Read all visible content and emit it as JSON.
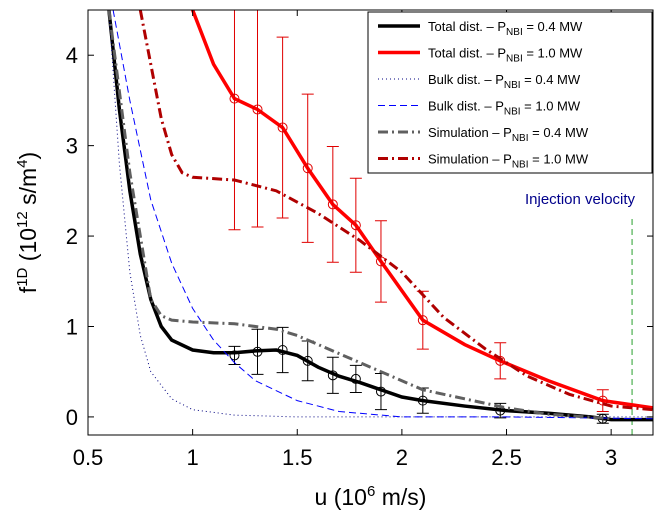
{
  "chart_data": {
    "type": "line",
    "xlabel": [
      "u (10",
      "6",
      " m/s)"
    ],
    "ylabel": [
      "f",
      "1D",
      " (10",
      "12",
      " s/m",
      "4",
      ")"
    ],
    "xlim": [
      0.5,
      3.2
    ],
    "ylim": [
      -0.2,
      4.5
    ],
    "xticks": [
      0.5,
      1,
      1.5,
      2,
      2.5,
      3
    ],
    "yticks": [
      0,
      1,
      2,
      3,
      4
    ],
    "legend": "upper right",
    "annotation": {
      "text": "Injection velocity",
      "x": 3.1,
      "color": "#00008b",
      "line_color": "#4caf50"
    },
    "series": [
      {
        "name": [
          "Total dist. – P",
          "NBI",
          " = 0.4 MW"
        ],
        "color": "#000000",
        "style": "solid",
        "width": 3.5,
        "x": [
          0.6,
          0.65,
          0.7,
          0.75,
          0.8,
          0.85,
          0.9,
          1.0,
          1.1,
          1.2,
          1.3,
          1.4,
          1.5,
          1.6,
          1.7,
          1.8,
          1.9,
          2.0,
          2.1,
          2.3,
          2.5,
          2.7,
          2.9,
          3.0,
          3.2
        ],
        "values": [
          4.5,
          3.4,
          2.5,
          1.8,
          1.3,
          1.0,
          0.85,
          0.74,
          0.71,
          0.71,
          0.73,
          0.74,
          0.68,
          0.55,
          0.45,
          0.38,
          0.3,
          0.22,
          0.18,
          0.12,
          0.07,
          0.04,
          0.0,
          -0.03,
          -0.03
        ],
        "markers": {
          "color": "#000000",
          "x": [
            1.2,
            1.31,
            1.43,
            1.55,
            1.67,
            1.78,
            1.9,
            2.1,
            2.47,
            2.96
          ],
          "values": [
            0.68,
            0.72,
            0.74,
            0.62,
            0.46,
            0.42,
            0.28,
            0.18,
            0.07,
            -0.02
          ],
          "errors": [
            0.1,
            0.25,
            0.25,
            0.22,
            0.2,
            0.15,
            0.2,
            0.14,
            0.08,
            0.05
          ]
        }
      },
      {
        "name": [
          "Total dist. – P",
          "NBI",
          " = 1.0 MW"
        ],
        "color": "#ff0000",
        "style": "solid",
        "width": 3.5,
        "x": [
          1.0,
          1.1,
          1.2,
          1.31,
          1.43,
          1.55,
          1.67,
          1.78,
          1.9,
          2.1,
          2.3,
          2.47,
          2.7,
          2.96,
          3.2
        ],
        "values": [
          4.5,
          3.9,
          3.52,
          3.4,
          3.2,
          2.75,
          2.35,
          2.12,
          1.72,
          1.07,
          0.8,
          0.62,
          0.4,
          0.18,
          0.1
        ],
        "markers": {
          "color": "#e00000",
          "x": [
            1.2,
            1.31,
            1.43,
            1.55,
            1.67,
            1.78,
            1.9,
            2.1,
            2.47,
            2.96
          ],
          "values": [
            3.52,
            3.4,
            3.2,
            2.75,
            2.35,
            2.12,
            1.72,
            1.07,
            0.62,
            0.18
          ],
          "errors": [
            1.45,
            1.3,
            1.0,
            0.82,
            0.64,
            0.52,
            0.45,
            0.32,
            0.2,
            0.12
          ]
        }
      },
      {
        "name": [
          "Bulk  dist. – P",
          "NBI",
          " = 0.4 MW"
        ],
        "color": "#000080",
        "style": "dotted",
        "width": 1,
        "x": [
          0.6,
          0.65,
          0.7,
          0.75,
          0.8,
          0.9,
          1.0,
          1.2,
          1.5,
          3.2
        ],
        "values": [
          4.5,
          2.8,
          1.6,
          0.9,
          0.5,
          0.2,
          0.08,
          0.02,
          0.0,
          0.0
        ]
      },
      {
        "name": [
          "Bulk  dist. – P",
          "NBI",
          " = 1.0 MW"
        ],
        "color": "#0000ff",
        "style": "dashed",
        "width": 1,
        "x": [
          0.62,
          0.7,
          0.8,
          0.9,
          1.0,
          1.1,
          1.2,
          1.3,
          1.5,
          1.7,
          2.0,
          2.5,
          3.2
        ],
        "values": [
          4.5,
          3.5,
          2.4,
          1.7,
          1.2,
          0.85,
          0.6,
          0.4,
          0.18,
          0.06,
          0.0,
          0.0,
          -0.02
        ]
      },
      {
        "name": [
          "Simulation  – P",
          "NBI",
          " = 0.4 MW"
        ],
        "color": "#606060",
        "style": "dashdot",
        "width": 3,
        "x": [
          0.6,
          0.7,
          0.8,
          0.85,
          0.9,
          1.0,
          1.2,
          1.4,
          1.5,
          1.7,
          1.9,
          2.1,
          2.3,
          2.5,
          2.7,
          3.0
        ],
        "values": [
          4.5,
          2.7,
          1.3,
          1.12,
          1.07,
          1.05,
          1.03,
          0.97,
          0.9,
          0.7,
          0.5,
          0.3,
          0.2,
          0.1,
          0.03,
          -0.02
        ]
      },
      {
        "name": [
          "Simulation  – P",
          "NBI",
          " = 1.0 MW"
        ],
        "color": "#b00000",
        "style": "dashdot",
        "width": 3,
        "x": [
          0.75,
          0.8,
          0.85,
          0.9,
          0.95,
          1.0,
          1.2,
          1.4,
          1.6,
          1.8,
          2.0,
          2.2,
          2.4,
          2.6,
          2.8,
          3.0,
          3.2
        ],
        "values": [
          4.5,
          3.9,
          3.3,
          2.9,
          2.7,
          2.65,
          2.62,
          2.5,
          2.25,
          1.95,
          1.6,
          1.1,
          0.75,
          0.45,
          0.25,
          0.12,
          0.08
        ]
      }
    ]
  }
}
